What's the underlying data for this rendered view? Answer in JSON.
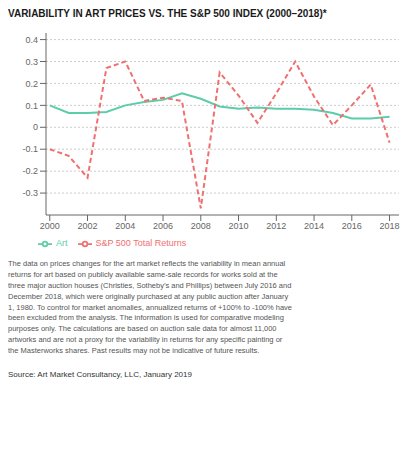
{
  "chart_data": {
    "type": "line",
    "title": "VARIABILITY IN ART PRICES VS. THE S&P 500 INDEX (2000–2018)*",
    "x": [
      2000,
      2001,
      2002,
      2003,
      2004,
      2005,
      2006,
      2007,
      2008,
      2009,
      2010,
      2011,
      2012,
      2013,
      2014,
      2015,
      2016,
      2017,
      2018
    ],
    "series": [
      {
        "name": "Art",
        "color": "#5dccaa",
        "line_style": "solid",
        "values": [
          0.1,
          0.065,
          0.065,
          0.07,
          0.1,
          0.115,
          0.125,
          0.155,
          0.13,
          0.095,
          0.085,
          0.09,
          0.085,
          0.085,
          0.08,
          0.065,
          0.04,
          0.04,
          0.048
        ]
      },
      {
        "name": "S&P 500 Total Returns",
        "color": "#f07070",
        "line_style": "dashed",
        "values": [
          -0.1,
          -0.13,
          -0.23,
          0.27,
          0.3,
          0.12,
          0.135,
          0.12,
          -0.37,
          0.25,
          0.145,
          0.02,
          0.155,
          0.3,
          0.14,
          0.01,
          0.1,
          0.195,
          -0.07
        ]
      }
    ],
    "xlim": [
      1999.8,
      2018.5
    ],
    "xticks": [
      2000,
      2002,
      2004,
      2006,
      2008,
      2010,
      2012,
      2014,
      2016,
      2018
    ],
    "ylim": [
      -0.4,
      0.43
    ],
    "yticks": [
      -0.3,
      -0.2,
      -0.1,
      0,
      0.1,
      0.2,
      0.3,
      0.4
    ],
    "grid": true,
    "legend": "bottom",
    "annotations": [
      "The data on prices changes for the art market reflects the variability in mean annual\nreturns for art based on publicly available same-sale records for works sold at the\nthree major auction houses (Christies, Sotheby’s and Phillips) between July 2016 and\nDecember 2018, which were originally purchased at any public auction after January\n1, 1980. To control for market anomalies, annualized returns of +100% to -100% have\nbeen excluded from the analysis. The information is used for comparative modeling\npurposes only. The calculations are based on auction sale data for almost 11,000\nartworks and are not a proxy for the variability in returns for any specific painting or\nthe Masterworks shares. Past results may not be indicative of future results.",
      "Source: Art Market Consultancy, LLC, January 2019"
    ]
  }
}
